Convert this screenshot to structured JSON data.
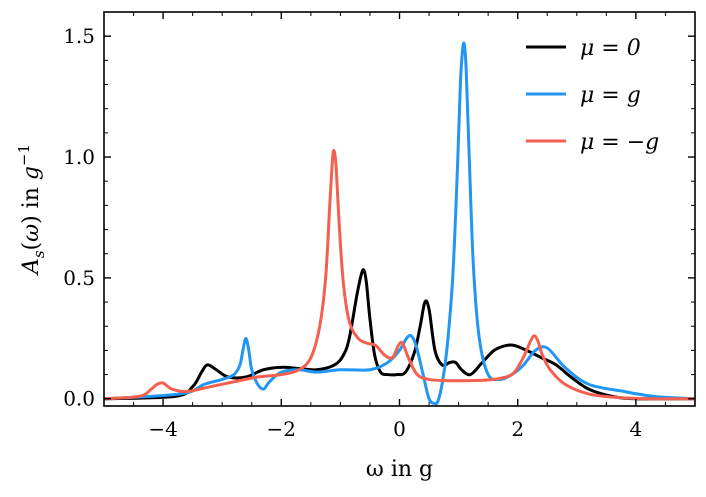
{
  "chart_data": {
    "type": "line",
    "xlabel": "ω in g",
    "ylabel": "A_s(ω) in g^−1",
    "xlim": [
      -5,
      5
    ],
    "ylim": [
      -0.03,
      1.6
    ],
    "x_ticks": [
      -4,
      -2,
      0,
      2,
      4
    ],
    "x_tick_labels": [
      "−4",
      "−2",
      "0",
      "2",
      "4"
    ],
    "y_ticks": [
      0.0,
      0.5,
      1.0,
      1.5
    ],
    "y_tick_labels": [
      "0.0",
      "0.5",
      "1.0",
      "1.5"
    ],
    "grid": false,
    "legend_position": "top-right",
    "series": [
      {
        "name": "μ = 0",
        "color": "#000000",
        "x": [
          -5,
          -3.8,
          -3.5,
          -3.35,
          -3.25,
          -3.1,
          -2.9,
          -2.6,
          -2.3,
          -2.0,
          -1.7,
          -1.4,
          -1.1,
          -0.95,
          -0.85,
          -0.72,
          -0.64,
          -0.6,
          -0.56,
          -0.5,
          -0.42,
          -0.32,
          -0.2,
          -0.05,
          0.1,
          0.25,
          0.35,
          0.43,
          0.5,
          0.6,
          0.72,
          0.85,
          0.95,
          1.05,
          1.2,
          1.4,
          1.6,
          1.8,
          1.95,
          2.15,
          2.4,
          2.65,
          2.9,
          3.2,
          3.6,
          4.0,
          5
        ],
        "y": [
          0.0,
          0.01,
          0.05,
          0.11,
          0.14,
          0.12,
          0.09,
          0.09,
          0.12,
          0.13,
          0.125,
          0.12,
          0.14,
          0.18,
          0.25,
          0.43,
          0.52,
          0.53,
          0.48,
          0.33,
          0.18,
          0.11,
          0.1,
          0.1,
          0.11,
          0.19,
          0.3,
          0.4,
          0.37,
          0.2,
          0.14,
          0.15,
          0.15,
          0.12,
          0.1,
          0.15,
          0.2,
          0.22,
          0.22,
          0.2,
          0.17,
          0.14,
          0.09,
          0.04,
          0.01,
          0.0,
          0.0
        ]
      },
      {
        "name": "μ = g",
        "color": "#2196f3",
        "x": [
          -5,
          -3.7,
          -3.3,
          -3.0,
          -2.8,
          -2.7,
          -2.65,
          -2.6,
          -2.55,
          -2.5,
          -2.4,
          -2.3,
          -2.2,
          -2.0,
          -1.7,
          -1.4,
          -1.0,
          -0.5,
          -0.2,
          0.0,
          0.12,
          0.2,
          0.28,
          0.4,
          0.5,
          0.6,
          0.65,
          0.72,
          0.8,
          0.9,
          0.98,
          1.03,
          1.07,
          1.1,
          1.13,
          1.18,
          1.25,
          1.35,
          1.5,
          1.7,
          1.9,
          2.1,
          2.3,
          2.5,
          2.8,
          3.2,
          3.8,
          4.3,
          5
        ],
        "y": [
          0.0,
          0.02,
          0.06,
          0.08,
          0.1,
          0.14,
          0.2,
          0.25,
          0.2,
          0.12,
          0.06,
          0.04,
          0.07,
          0.11,
          0.12,
          0.11,
          0.12,
          0.12,
          0.15,
          0.2,
          0.25,
          0.26,
          0.22,
          0.1,
          0.0,
          -0.02,
          -0.01,
          0.06,
          0.2,
          0.5,
          0.95,
          1.3,
          1.45,
          1.46,
          1.35,
          1.0,
          0.55,
          0.25,
          0.1,
          0.08,
          0.1,
          0.14,
          0.2,
          0.21,
          0.13,
          0.06,
          0.03,
          0.01,
          0.0
        ]
      },
      {
        "name": "μ = −g",
        "color": "#f4604f",
        "x": [
          -5,
          -4.4,
          -4.2,
          -4.1,
          -4.0,
          -3.85,
          -3.6,
          -3.2,
          -2.8,
          -2.4,
          -2.0,
          -1.7,
          -1.5,
          -1.35,
          -1.25,
          -1.18,
          -1.13,
          -1.1,
          -1.07,
          -1.02,
          -0.95,
          -0.85,
          -0.7,
          -0.55,
          -0.4,
          -0.25,
          -0.12,
          -0.02,
          0.05,
          0.15,
          0.3,
          0.5,
          0.8,
          1.2,
          1.6,
          1.9,
          2.05,
          2.15,
          2.22,
          2.28,
          2.34,
          2.42,
          2.55,
          2.8,
          3.2,
          3.7,
          4.2,
          5
        ],
        "y": [
          0.0,
          0.01,
          0.04,
          0.06,
          0.065,
          0.04,
          0.03,
          0.05,
          0.07,
          0.09,
          0.1,
          0.12,
          0.17,
          0.3,
          0.5,
          0.8,
          1.0,
          1.02,
          0.95,
          0.72,
          0.48,
          0.32,
          0.25,
          0.23,
          0.22,
          0.18,
          0.17,
          0.22,
          0.23,
          0.17,
          0.1,
          0.08,
          0.075,
          0.075,
          0.08,
          0.1,
          0.15,
          0.2,
          0.24,
          0.26,
          0.24,
          0.18,
          0.12,
          0.06,
          0.02,
          0.005,
          0.0,
          0.0
        ]
      }
    ]
  }
}
